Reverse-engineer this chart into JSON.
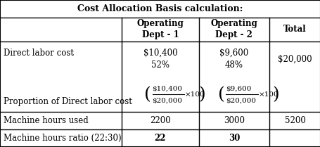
{
  "title": "Cost Allocation Basis calculation:",
  "col_headers": [
    "",
    "Operating\nDept - 1",
    "Operating\nDept - 2",
    "Total"
  ],
  "rows": [
    {
      "label": "Direct labor cost",
      "dept1_lines": [
        "$10,400",
        "52%"
      ],
      "dept2_lines": [
        "$9,600",
        "48%"
      ],
      "total": "$20,000",
      "has_fraction": true,
      "frac1_num": "$10,400",
      "frac1_den": "$20,000",
      "frac2_num": "$9,600",
      "frac2_den": "$20,000"
    },
    {
      "label": "Proportion of Direct labor cost",
      "dept1_lines": [],
      "dept2_lines": [],
      "total": "",
      "has_fraction": false
    },
    {
      "label": "Machine hours used",
      "dept1_lines": [
        "2200"
      ],
      "dept2_lines": [
        "3000"
      ],
      "total": "5200",
      "has_fraction": false
    },
    {
      "label": "Machine hours ratio (22:30)",
      "dept1_lines": [
        "22"
      ],
      "dept2_lines": [
        "30"
      ],
      "total": "",
      "has_fraction": false,
      "bold_values": true
    }
  ],
  "bg_color": "#ffffff",
  "border_color": "#000000",
  "text_color": "#000000",
  "font_size": 8.5,
  "header_font_size": 8.5
}
